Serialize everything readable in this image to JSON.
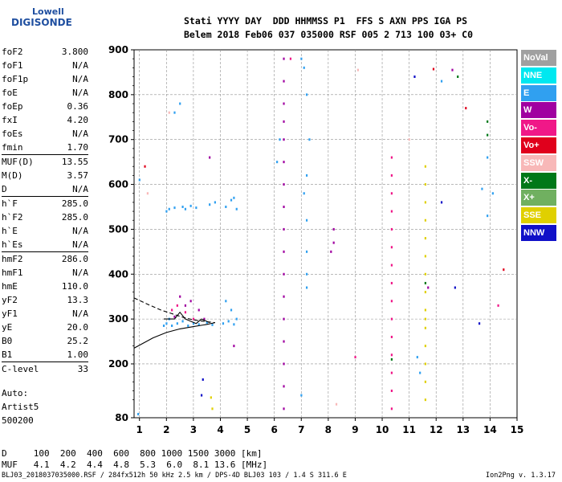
{
  "logo": {
    "line1": "Lowell",
    "line2": "DIGISONDE"
  },
  "header": {
    "line1": "Stati YYYY DAY  DDD HHMMSS P1  FFS S AXN PPS IGA PS",
    "line2": "Belem 2018 Feb06 037 035000 RSF 005 2 713 100 03+ C0"
  },
  "params_group1": [
    {
      "label": "foF2",
      "value": "3.800"
    },
    {
      "label": "foF1",
      "value": "N/A"
    },
    {
      "label": "foF1p",
      "value": "N/A"
    },
    {
      "label": "foE",
      "value": "N/A"
    },
    {
      "label": "foEp",
      "value": "0.36"
    },
    {
      "label": "fxI",
      "value": "4.20"
    },
    {
      "label": "foEs",
      "value": "N/A"
    },
    {
      "label": "fmin",
      "value": "1.70"
    }
  ],
  "params_group2": [
    {
      "label": "MUF(D)",
      "value": "13.55"
    },
    {
      "label": "M(D)",
      "value": "3.57"
    },
    {
      "label": "D",
      "value": "N/A"
    }
  ],
  "params_group3": [
    {
      "label": "h`F",
      "value": "285.0"
    },
    {
      "label": "h`F2",
      "value": "285.0"
    },
    {
      "label": "h`E",
      "value": "N/A"
    },
    {
      "label": "h`Es",
      "value": "N/A"
    }
  ],
  "params_group4": [
    {
      "label": "hmF2",
      "value": "286.0"
    },
    {
      "label": "hmF1",
      "value": "N/A"
    },
    {
      "label": "hmE",
      "value": "110.0"
    },
    {
      "label": "yF2",
      "value": "13.3"
    },
    {
      "label": "yF1",
      "value": "N/A"
    },
    {
      "label": "yE",
      "value": "20.0"
    },
    {
      "label": "B0",
      "value": "25.2"
    },
    {
      "label": "B1",
      "value": "1.00"
    }
  ],
  "params_group5": [
    {
      "label": "C-level",
      "value": "33"
    }
  ],
  "autoscaling": {
    "line1": "Auto:",
    "line2": "Artist5",
    "line3": "500200"
  },
  "legend": [
    {
      "label": "NoVal",
      "color": "#a0a0a0"
    },
    {
      "label": "NNE",
      "color": "#00e8f0"
    },
    {
      "label": "E",
      "color": "#30a0f0"
    },
    {
      "label": "W",
      "color": "#a000a0"
    },
    {
      "label": "Vo-",
      "color": "#f01888"
    },
    {
      "label": "Vo+",
      "color": "#e0001c"
    },
    {
      "label": "SSW",
      "color": "#f8b8b8"
    },
    {
      "label": "X-",
      "color": "#007818"
    },
    {
      "label": "X+",
      "color": "#70b060"
    },
    {
      "label": "SSE",
      "color": "#e0d000"
    },
    {
      "label": "NNW",
      "color": "#1010c8"
    }
  ],
  "muf_table": {
    "line1": "D     100  200  400  600  800 1000 1500 3000 [km]",
    "line2": "MUF   4.1  4.2  4.4  4.8  5.3  6.0  8.1 13.6 [MHz]"
  },
  "footer": {
    "left": "BLJ03_2018037035000.RSF / 284fx512h 50 kHz 2.5 km / DPS-4D BLJ03 103 / 1.4 S 311.6 E",
    "right": "Ion2Png v. 1.3.17"
  },
  "chart_data": {
    "type": "scatter",
    "xlabel": "",
    "ylabel": "",
    "xlim": [
      0.8,
      15.0
    ],
    "ylim": [
      80,
      900
    ],
    "x_ticks": [
      1,
      2,
      3,
      4,
      5,
      6,
      7,
      8,
      9,
      10,
      11,
      12,
      13,
      14,
      15
    ],
    "y_ticks": [
      80,
      200,
      300,
      400,
      500,
      600,
      700,
      800,
      900
    ],
    "grid": "dashed",
    "series": [
      {
        "name": "E",
        "color": "#30a0f0",
        "points": [
          [
            1.9,
            285
          ],
          [
            2.0,
            290
          ],
          [
            2.1,
            300
          ],
          [
            2.2,
            285
          ],
          [
            2.4,
            290
          ],
          [
            2.6,
            295
          ],
          [
            2.8,
            285
          ],
          [
            3.0,
            290
          ],
          [
            3.2,
            288
          ],
          [
            3.5,
            292
          ],
          [
            3.7,
            287
          ],
          [
            4.1,
            290
          ],
          [
            4.3,
            295
          ],
          [
            4.5,
            288
          ],
          [
            4.6,
            300
          ],
          [
            4.4,
            320
          ],
          [
            4.2,
            340
          ],
          [
            2.0,
            540
          ],
          [
            2.1,
            545
          ],
          [
            2.3,
            548
          ],
          [
            2.6,
            550
          ],
          [
            2.7,
            545
          ],
          [
            2.9,
            552
          ],
          [
            3.1,
            548
          ],
          [
            3.6,
            555
          ],
          [
            3.8,
            560
          ],
          [
            4.2,
            550
          ],
          [
            4.4,
            565
          ],
          [
            4.5,
            570
          ],
          [
            4.6,
            545
          ],
          [
            7.0,
            880
          ],
          [
            7.1,
            860
          ],
          [
            7.2,
            800
          ],
          [
            7.2,
            620
          ],
          [
            7.1,
            580
          ],
          [
            7.2,
            520
          ],
          [
            7.2,
            450
          ],
          [
            7.2,
            400
          ],
          [
            7.2,
            370
          ],
          [
            6.1,
            650
          ],
          [
            6.2,
            700
          ],
          [
            2.5,
            780
          ],
          [
            2.3,
            760
          ],
          [
            1.0,
            610
          ],
          [
            0.95,
            88
          ],
          [
            12.2,
            830
          ],
          [
            13.9,
            660
          ],
          [
            13.7,
            590
          ],
          [
            14.1,
            580
          ],
          [
            13.9,
            530
          ],
          [
            11.3,
            215
          ],
          [
            11.4,
            180
          ],
          [
            7.0,
            130
          ],
          [
            7.3,
            700
          ]
        ]
      },
      {
        "name": "W",
        "color": "#a000a0",
        "points": [
          [
            6.35,
            880
          ],
          [
            6.35,
            830
          ],
          [
            6.35,
            780
          ],
          [
            6.35,
            740
          ],
          [
            6.35,
            700
          ],
          [
            6.35,
            650
          ],
          [
            6.35,
            600
          ],
          [
            6.35,
            550
          ],
          [
            6.35,
            500
          ],
          [
            6.35,
            450
          ],
          [
            6.35,
            400
          ],
          [
            6.35,
            350
          ],
          [
            6.35,
            300
          ],
          [
            6.35,
            250
          ],
          [
            6.35,
            200
          ],
          [
            6.35,
            150
          ],
          [
            6.35,
            100
          ],
          [
            8.2,
            500
          ],
          [
            8.2,
            470
          ],
          [
            8.1,
            450
          ],
          [
            2.5,
            350
          ],
          [
            2.7,
            330
          ],
          [
            2.9,
            340
          ],
          [
            3.2,
            320
          ],
          [
            3.4,
            300
          ],
          [
            2.3,
            305
          ],
          [
            4.5,
            240
          ],
          [
            11.7,
            370
          ],
          [
            3.6,
            660
          ],
          [
            12.6,
            855
          ]
        ]
      },
      {
        "name": "Vo-",
        "color": "#f01888",
        "points": [
          [
            10.35,
            660
          ],
          [
            10.35,
            620
          ],
          [
            10.35,
            580
          ],
          [
            10.35,
            540
          ],
          [
            10.35,
            500
          ],
          [
            10.35,
            460
          ],
          [
            10.35,
            420
          ],
          [
            10.35,
            380
          ],
          [
            10.35,
            340
          ],
          [
            10.35,
            300
          ],
          [
            10.35,
            260
          ],
          [
            10.35,
            220
          ],
          [
            10.35,
            180
          ],
          [
            10.35,
            140
          ],
          [
            10.35,
            100
          ],
          [
            2.4,
            330
          ],
          [
            2.7,
            315
          ],
          [
            3.0,
            300
          ],
          [
            2.2,
            320
          ],
          [
            14.3,
            330
          ],
          [
            9.0,
            215
          ],
          [
            6.6,
            880
          ]
        ]
      },
      {
        "name": "Vo+",
        "color": "#e0001c",
        "points": [
          [
            11.9,
            857
          ],
          [
            14.5,
            410
          ],
          [
            13.1,
            770
          ],
          [
            1.2,
            640
          ]
        ]
      },
      {
        "name": "SSE",
        "color": "#e0d000",
        "points": [
          [
            11.6,
            640
          ],
          [
            11.6,
            600
          ],
          [
            11.6,
            560
          ],
          [
            11.6,
            520
          ],
          [
            11.6,
            480
          ],
          [
            11.6,
            440
          ],
          [
            11.6,
            400
          ],
          [
            11.6,
            360
          ],
          [
            11.6,
            320
          ],
          [
            11.6,
            300
          ],
          [
            11.6,
            280
          ],
          [
            11.6,
            240
          ],
          [
            11.6,
            200
          ],
          [
            11.6,
            160
          ],
          [
            11.6,
            120
          ],
          [
            3.65,
            125
          ],
          [
            3.7,
            100
          ]
        ]
      },
      {
        "name": "X-",
        "color": "#007818",
        "points": [
          [
            12.8,
            840
          ],
          [
            13.9,
            710
          ],
          [
            13.9,
            740
          ],
          [
            10.35,
            210
          ],
          [
            11.6,
            380
          ]
        ]
      },
      {
        "name": "NNW",
        "color": "#1010c8",
        "points": [
          [
            11.2,
            840
          ],
          [
            12.2,
            560
          ],
          [
            12.7,
            370
          ],
          [
            13.6,
            290
          ],
          [
            3.3,
            130
          ],
          [
            3.35,
            165
          ]
        ]
      },
      {
        "name": "SSW",
        "color": "#f8b8b8",
        "points": [
          [
            9.1,
            855
          ],
          [
            11.0,
            700
          ],
          [
            8.3,
            110
          ],
          [
            2.1,
            760
          ],
          [
            1.3,
            580
          ]
        ]
      }
    ],
    "trace_lines": [
      {
        "points": [
          [
            0.8,
            235
          ],
          [
            1.5,
            258
          ],
          [
            2.0,
            270
          ],
          [
            2.5,
            278
          ],
          [
            3.0,
            283
          ],
          [
            3.5,
            288
          ],
          [
            3.8,
            292
          ]
        ]
      },
      {
        "points": [
          [
            0.8,
            347
          ],
          [
            1.3,
            333
          ],
          [
            1.8,
            320
          ],
          [
            2.2,
            312
          ],
          [
            2.6,
            304
          ],
          [
            3.0,
            298
          ],
          [
            3.5,
            294
          ],
          [
            3.8,
            292
          ]
        ],
        "dashed": true
      },
      {
        "points": [
          [
            1.9,
            300
          ],
          [
            2.3,
            300
          ],
          [
            2.5,
            315
          ],
          [
            2.7,
            300
          ],
          [
            3.1,
            290
          ],
          [
            3.3,
            300
          ],
          [
            3.6,
            292
          ]
        ]
      }
    ]
  }
}
